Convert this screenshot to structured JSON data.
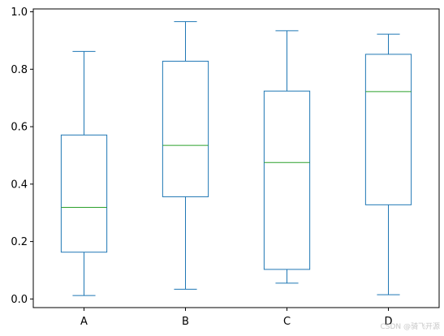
{
  "chart_data": {
    "type": "box",
    "categories": [
      "A",
      "B",
      "C",
      "D"
    ],
    "boxes": [
      {
        "category": "A",
        "whisker_low": 0.012,
        "q1": 0.163,
        "median": 0.319,
        "q3": 0.571,
        "whisker_high": 0.862
      },
      {
        "category": "B",
        "whisker_low": 0.034,
        "q1": 0.356,
        "median": 0.535,
        "q3": 0.828,
        "whisker_high": 0.966
      },
      {
        "category": "C",
        "whisker_low": 0.055,
        "q1": 0.103,
        "median": 0.475,
        "q3": 0.724,
        "whisker_high": 0.934
      },
      {
        "category": "D",
        "whisker_low": 0.015,
        "q1": 0.328,
        "median": 0.722,
        "q3": 0.852,
        "whisker_high": 0.922
      }
    ],
    "ylim": [
      -0.03,
      1.01
    ],
    "yticks": [
      0.0,
      0.2,
      0.4,
      0.6,
      0.8,
      1.0
    ],
    "ytick_labels": [
      "0.0",
      "0.2",
      "0.4",
      "0.6",
      "0.8",
      "1.0"
    ],
    "grid": false,
    "colors": {
      "box": "#1f77b4",
      "median": "#2ca02c",
      "axis": "#000000"
    }
  },
  "watermark": "CSDN @骑飞开源"
}
